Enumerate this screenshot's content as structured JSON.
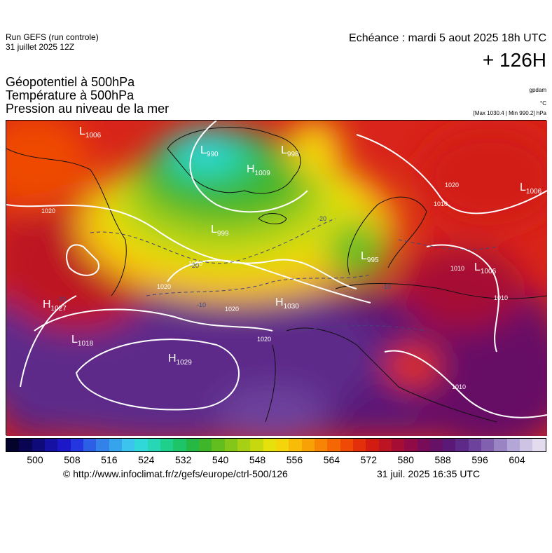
{
  "header": {
    "run_line1": "Run GEFS (run controle)",
    "run_line2": "31 juillet 2025 12Z",
    "echeance": "Echéance : mardi 5 aout 2025 18h UTC",
    "hour": "+ 126H"
  },
  "parameters": {
    "geopotential": "Géopotentiel à 500hPa",
    "temperature": "Température à 500hPa",
    "pressure": "Pression au niveau de la mer"
  },
  "units": {
    "geopotential": "gpdam",
    "temperature": "°C",
    "pressure": "[Max 1030.4 | Min 990.2] hPa"
  },
  "map": {
    "pressure_centers": [
      {
        "type": "L",
        "value": "1006"
      },
      {
        "type": "L",
        "value": "990"
      },
      {
        "type": "L",
        "value": "998"
      },
      {
        "type": "H",
        "value": "1009"
      },
      {
        "type": "L",
        "value": "999"
      },
      {
        "type": "L",
        "value": "1006"
      },
      {
        "type": "L",
        "value": "995"
      },
      {
        "type": "L",
        "value": "1006"
      },
      {
        "type": "H",
        "value": "1027"
      },
      {
        "type": "H",
        "value": "1030"
      },
      {
        "type": "L",
        "value": "1018"
      },
      {
        "type": "H",
        "value": "1029"
      }
    ],
    "isobar_labels": [
      "1020",
      "1010",
      "1020",
      "1020",
      "1020",
      "1010",
      "1010",
      "1010",
      "1010",
      "1020"
    ],
    "temperature_labels": [
      "-20",
      "-20",
      "-10",
      "-10",
      "-10"
    ]
  },
  "colorbar": {
    "colors": [
      "#04032b",
      "#0a0552",
      "#0e0a7a",
      "#1610a3",
      "#1c18c8",
      "#2436e0",
      "#2d5ee6",
      "#3282ea",
      "#36a4ed",
      "#3cc3ee",
      "#30d8da",
      "#26d6b4",
      "#1fcf8c",
      "#1dc468",
      "#25b845",
      "#3fb52a",
      "#62bd1f",
      "#85c61a",
      "#a7d014",
      "#c8d80f",
      "#e6e00c",
      "#f4d40a",
      "#f8bc08",
      "#f8a106",
      "#f78404",
      "#f56703",
      "#ef4a05",
      "#e3300a",
      "#d21c12",
      "#bd1424",
      "#a60d34",
      "#8f0a46",
      "#780c58",
      "#661166",
      "#5a1877",
      "#5d2a8a",
      "#6d429d",
      "#8160b0",
      "#9a84c4",
      "#b4a6d6",
      "#cdc4e4",
      "#e2dcee"
    ],
    "ticks": [
      "500",
      "508",
      "516",
      "524",
      "532",
      "540",
      "548",
      "556",
      "564",
      "572",
      "580",
      "588",
      "596",
      "604"
    ]
  },
  "footer": {
    "url": "© http://www.infoclimat.fr/z/gefs/europe/ctrl-500/126",
    "timestamp": "31 juil. 2025 16:35 UTC"
  }
}
